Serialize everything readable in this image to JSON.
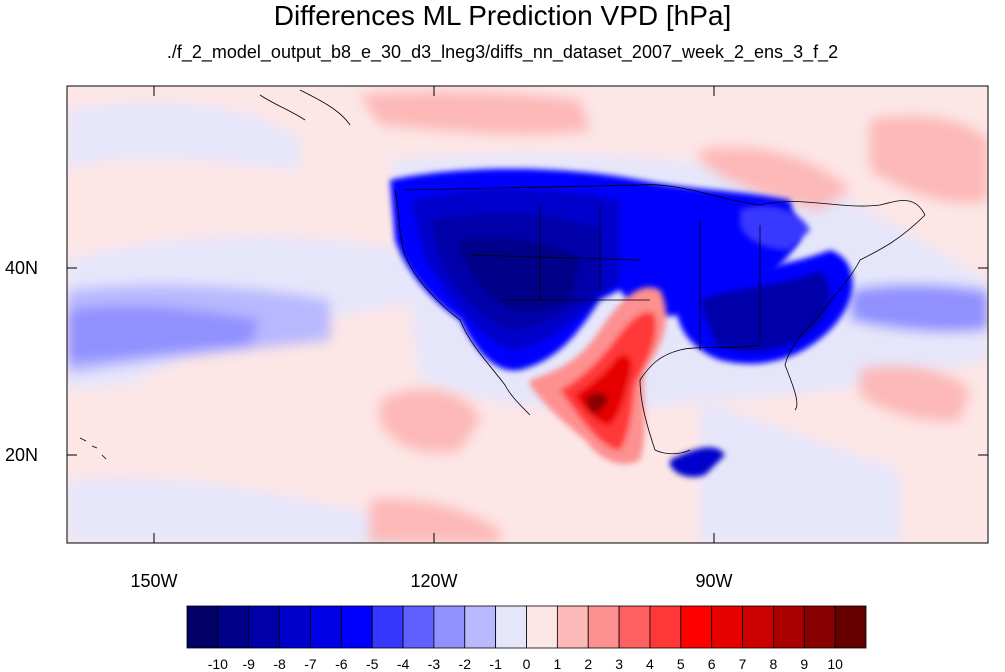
{
  "title": "Differences ML Prediction VPD [hPa]",
  "subtitle": "./f_2_model_output_b8_e_30_d3_lneg3/diffs_nn_dataset_2007_week_2_ens_3_f_2",
  "map": {
    "lon_range": [
      -160,
      -61
    ],
    "lat_range": [
      11,
      60
    ],
    "x_ticks": [
      "150W",
      "120W",
      "90W"
    ],
    "y_ticks": [
      "40N",
      "20N"
    ]
  },
  "colorbar": {
    "labels": [
      "-10",
      "-9",
      "-8",
      "-7",
      "-6",
      "-5",
      "-4",
      "-3",
      "-2",
      "-1",
      "0",
      "1",
      "2",
      "3",
      "4",
      "5",
      "6",
      "7",
      "8",
      "9",
      "10"
    ],
    "colors": [
      "#000066",
      "#000088",
      "#0000aa",
      "#0000cc",
      "#0000e6",
      "#0000ff",
      "#3737ff",
      "#6060ff",
      "#9090ff",
      "#b8b8ff",
      "#e6e6fb",
      "#fde6e6",
      "#fdb8b8",
      "#fd9090",
      "#fd6060",
      "#ff3737",
      "#ff0000",
      "#e60000",
      "#cc0000",
      "#aa0000",
      "#880000",
      "#660000"
    ]
  }
}
